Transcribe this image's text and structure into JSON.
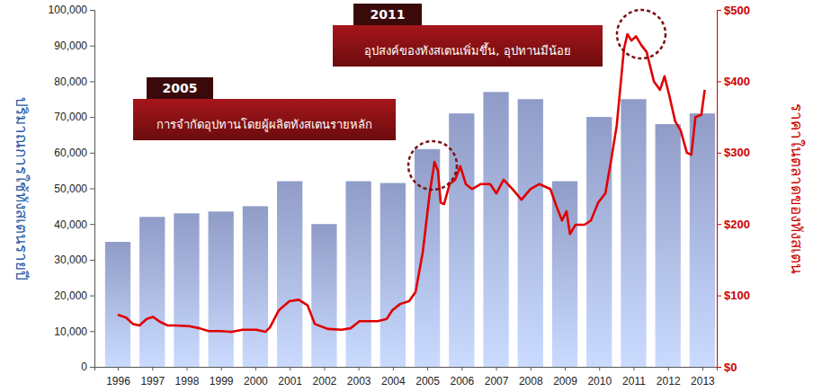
{
  "chart_data": {
    "type": "bar",
    "x": [
      1996,
      1997,
      1998,
      1999,
      2000,
      2001,
      2002,
      2003,
      2004,
      2005,
      2006,
      2007,
      2008,
      2009,
      2010,
      2011,
      2012,
      2013
    ],
    "xlim": [
      1995.32,
      2013.42
    ],
    "xticks": [
      1996,
      1997,
      1998,
      1999,
      2000,
      2001,
      2002,
      2003,
      2004,
      2005,
      2006,
      2007,
      2008,
      2009,
      2010,
      2011,
      2012,
      2013
    ],
    "ylim": [
      0,
      100000
    ],
    "yticks": [
      0,
      {
        "value": 10000,
        "label": "10,000"
      },
      {
        "value": 20000,
        "label": "20,000"
      },
      {
        "value": 30000,
        "label": "30,000"
      },
      {
        "value": 40000,
        "label": "40,000"
      },
      {
        "value": 50000,
        "label": "50,000"
      },
      {
        "value": 60000,
        "label": "60,000"
      },
      {
        "value": 70000,
        "label": "70,000"
      },
      {
        "value": 80000,
        "label": "80,000"
      },
      {
        "value": 90000,
        "label": "90,000"
      },
      {
        "value": 100000,
        "label": "100,000"
      }
    ],
    "y_label": "ปริมาณการใช้ทังสเตนรายปี",
    "y2lim": [
      0,
      500
    ],
    "y2ticks": [
      {
        "value": 0,
        "label": "$0"
      },
      {
        "value": 100,
        "label": "$100"
      },
      {
        "value": 200,
        "label": "$200"
      },
      {
        "value": 300,
        "label": "$300"
      },
      {
        "value": 400,
        "label": "$400"
      },
      {
        "value": 500,
        "label": "$500"
      }
    ],
    "y2_label": "ราคาในตลาดของทังสเตน",
    "grid": false,
    "series": [
      {
        "type": "bar",
        "color": "#a3b1e2",
        "values": [
          35000,
          42000,
          43000,
          43500,
          45000,
          52000,
          40000,
          52000,
          51500,
          61000,
          71000,
          77000,
          75000,
          52000,
          70000,
          75000,
          68000,
          71000
        ]
      },
      {
        "type": "line",
        "axis": "y2",
        "color": "#e00000",
        "x": [
          1996.0,
          1996.24,
          1996.44,
          1996.63,
          1996.84,
          1997.02,
          1997.23,
          1997.44,
          1997.67,
          1998.07,
          1998.38,
          1998.64,
          1998.98,
          1999.32,
          1999.63,
          2000.03,
          2000.29,
          2000.42,
          2000.68,
          2000.99,
          2001.26,
          2001.52,
          2001.73,
          2002.12,
          2002.51,
          2002.77,
          2003.03,
          2003.56,
          2003.82,
          2003.98,
          2004.21,
          2004.47,
          2004.66,
          2004.87,
          2005.07,
          2005.21,
          2005.31,
          2005.39,
          2005.49,
          2005.65,
          2005.81,
          2005.96,
          2006.12,
          2006.3,
          2006.56,
          2006.83,
          2007.01,
          2007.22,
          2007.48,
          2007.74,
          2008.0,
          2008.26,
          2008.58,
          2008.74,
          2008.92,
          2009.05,
          2009.15,
          2009.31,
          2009.57,
          2009.76,
          2009.97,
          2010.18,
          2010.36,
          2010.51,
          2010.62,
          2010.72,
          2010.82,
          2010.94,
          2011.07,
          2011.22,
          2011.38,
          2011.59,
          2011.77,
          2011.9,
          2012.03,
          2012.21,
          2012.37,
          2012.55,
          2012.68,
          2012.8,
          2012.97,
          2013.07
        ],
        "values": [
          73,
          69,
          60,
          58,
          67,
          70,
          63,
          58,
          58,
          57,
          54,
          50,
          50,
          49,
          52,
          52,
          49,
          55,
          79,
          92,
          94,
          86,
          60,
          53,
          52,
          54,
          64,
          64,
          67,
          79,
          88,
          92,
          105,
          161,
          243,
          287,
          275,
          230,
          228,
          256,
          262,
          281,
          256,
          249,
          256,
          256,
          243,
          262,
          249,
          234,
          249,
          256,
          249,
          227,
          205,
          218,
          186,
          199,
          199,
          205,
          230,
          243,
          293,
          338,
          394,
          445,
          466,
          457,
          463,
          451,
          441,
          400,
          388,
          407,
          382,
          344,
          331,
          300,
          297,
          350,
          353,
          388
        ]
      }
    ],
    "annotations": [
      {
        "label": "2005",
        "text": "การจำกัดอุปทานโดยผู้ผลิตทังสเตนรายหลัก"
      },
      {
        "label": "2011",
        "text": "อุปสงค์ของทังสเตนเพิ่มขึ้น, อุปทานมีน้อย"
      }
    ]
  }
}
